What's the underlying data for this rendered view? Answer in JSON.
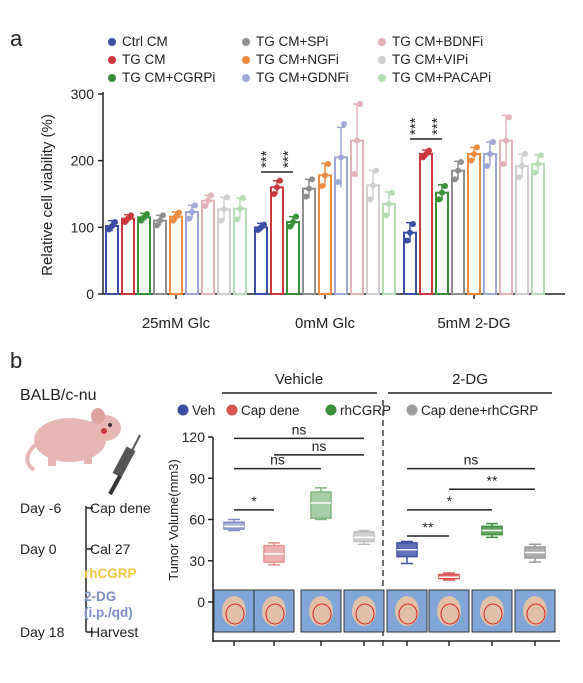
{
  "panel_a": {
    "label": "a",
    "chart_data": {
      "type": "bar",
      "ylabel": "Relative cell viability (%)",
      "ylim": [
        0,
        300
      ],
      "yticks": [
        0,
        100,
        200,
        300
      ],
      "categories": [
        "25mM Glc",
        "0mM Glc",
        "5mM 2-DG"
      ],
      "legend_position": "top",
      "series": [
        {
          "name": "Ctrl CM",
          "color": "#3b4fa6",
          "values": [
            102,
            100,
            92
          ],
          "errors": [
            8,
            6,
            15
          ],
          "points": [
            [
              97,
              102,
              108
            ],
            [
              96,
              100,
              104
            ],
            [
              80,
              92,
              105
            ]
          ]
        },
        {
          "name": "TG CM",
          "color": "#c8383d",
          "values": [
            113,
            160,
            210
          ],
          "errors": [
            6,
            10,
            6
          ],
          "points": [
            [
              108,
              113,
              118
            ],
            [
              150,
              160,
              170
            ],
            [
              205,
              210,
              215
            ]
          ]
        },
        {
          "name": "TG CM+CGRPi",
          "color": "#3a8f3a",
          "values": [
            115,
            108,
            152
          ],
          "errors": [
            6,
            8,
            12
          ],
          "points": [
            [
              110,
              115,
              120
            ],
            [
              101,
              108,
              116
            ],
            [
              142,
              152,
              162
            ]
          ]
        },
        {
          "name": "TG CM+SPi",
          "color": "#8e8e8e",
          "values": [
            110,
            158,
            185
          ],
          "errors": [
            8,
            14,
            14
          ],
          "points": [
            [
              103,
              110,
              118
            ],
            [
              146,
              158,
              172
            ],
            [
              172,
              185,
              198
            ]
          ]
        },
        {
          "name": "TG CM+NGFi",
          "color": "#ef8b40",
          "values": [
            116,
            178,
            210
          ],
          "errors": [
            7,
            18,
            10
          ],
          "points": [
            [
              110,
              116,
              122
            ],
            [
              162,
              178,
              195
            ],
            [
              200,
              210,
              220
            ]
          ]
        },
        {
          "name": "TG CM+GDNFi",
          "color": "#9ea7d8",
          "values": [
            123,
            205,
            210
          ],
          "errors": [
            10,
            45,
            18
          ],
          "points": [
            [
              113,
              123,
              133
            ],
            [
              168,
              205,
              255
            ],
            [
              192,
              210,
              228
            ]
          ]
        },
        {
          "name": "TG CM+BDNFi",
          "color": "#e4b3b8",
          "values": [
            140,
            230,
            230
          ],
          "errors": [
            8,
            55,
            38
          ],
          "points": [
            [
              132,
              140,
              148
            ],
            [
              180,
              230,
              285
            ],
            [
              195,
              230,
              265
            ]
          ]
        },
        {
          "name": "TG CM+VIPi",
          "color": "#cfcfcf",
          "values": [
            127,
            163,
            192
          ],
          "errors": [
            18,
            22,
            18
          ],
          "points": [
            [
              110,
              127,
              145
            ],
            [
              142,
              163,
              185
            ],
            [
              175,
              192,
              210
            ]
          ]
        },
        {
          "name": "TG CM+PACAPi",
          "color": "#b7dcb5",
          "values": [
            128,
            135,
            195
          ],
          "errors": [
            16,
            18,
            14
          ],
          "points": [
            [
              112,
              128,
              144
            ],
            [
              118,
              135,
              152
            ],
            [
              182,
              195,
              208
            ]
          ]
        }
      ],
      "annotations": [
        {
          "group": "0mM Glc",
          "text": "***",
          "from": "Ctrl CM",
          "to": "TG CM"
        },
        {
          "group": "0mM Glc",
          "text": "***",
          "from": "TG CM",
          "to": "TG CM+CGRPi"
        },
        {
          "group": "5mM 2-DG",
          "text": "***",
          "from": "Ctrl CM",
          "to": "TG CM"
        },
        {
          "group": "5mM 2-DG",
          "text": "***",
          "from": "TG CM",
          "to": "TG CM+CGRPi"
        }
      ]
    }
  },
  "panel_b": {
    "label": "b",
    "mouse_strain": "BALB/c-nu",
    "timeline": [
      {
        "day": "Day  -6",
        "event": "Cap dene",
        "color": "#222222"
      },
      {
        "day": "Day  0",
        "event": "Cal 27",
        "color": "#222222"
      },
      {
        "day": "",
        "event": "rhCGRP",
        "color": "#f2c744"
      },
      {
        "day": "",
        "event": "2-DG",
        "color": "#7b8fc8"
      },
      {
        "day": "",
        "event": "(i.p./qd)",
        "color": "#7b8fc8"
      },
      {
        "day": "Day  18",
        "event": "Harvest",
        "color": "#222222"
      }
    ],
    "chart_data": {
      "type": "box",
      "ylabel": "Tumor Volume(mm3)",
      "ylim": [
        0,
        120
      ],
      "yticks": [
        0,
        30,
        60,
        90,
        120
      ],
      "groups": [
        "Vehicle",
        "2-DG"
      ],
      "legend": [
        {
          "name": "Veh",
          "color": "#3b4fa6"
        },
        {
          "name": "Cap dene",
          "color": "#d9534f"
        },
        {
          "name": "rhCGRP",
          "color": "#3a8f3a"
        },
        {
          "name": "Cap dene+rhCGRP",
          "color": "#9a9a9a"
        }
      ],
      "series": [
        {
          "group": "Vehicle",
          "name": "Veh",
          "color": "#3b4fa6",
          "min": 52,
          "q1": 53,
          "median": 55,
          "q3": 58,
          "max": 60,
          "faded": true
        },
        {
          "group": "Vehicle",
          "name": "Cap dene",
          "color": "#d9534f",
          "min": 27,
          "q1": 29,
          "median": 35,
          "q3": 41,
          "max": 43,
          "faded": true
        },
        {
          "group": "Vehicle",
          "name": "rhCGRP",
          "color": "#3a8f3a",
          "min": 60,
          "q1": 61,
          "median": 72,
          "q3": 80,
          "max": 83,
          "faded": true
        },
        {
          "group": "Vehicle",
          "name": "Cap dene+rhCGRP",
          "color": "#9a9a9a",
          "min": 42,
          "q1": 44,
          "median": 47,
          "q3": 51,
          "max": 52,
          "faded": true
        },
        {
          "group": "2-DG",
          "name": "Veh",
          "color": "#3b4fa6",
          "min": 28,
          "q1": 33,
          "median": 38,
          "q3": 43,
          "max": 44,
          "faded": false
        },
        {
          "group": "2-DG",
          "name": "Cap dene",
          "color": "#d9534f",
          "min": 16,
          "q1": 17,
          "median": 18,
          "q3": 20,
          "max": 21,
          "faded": false
        },
        {
          "group": "2-DG",
          "name": "rhCGRP",
          "color": "#3a8f3a",
          "min": 47,
          "q1": 49,
          "median": 52,
          "q3": 55,
          "max": 57,
          "faded": false
        },
        {
          "group": "2-DG",
          "name": "Cap dene+rhCGRP",
          "color": "#9a9a9a",
          "min": 29,
          "q1": 32,
          "median": 36,
          "q3": 40,
          "max": 42,
          "faded": false
        }
      ],
      "comparisons": [
        {
          "from": 0,
          "to": 1,
          "text": "*",
          "y": 67
        },
        {
          "from": 0,
          "to": 2,
          "text": "ns",
          "y": 97
        },
        {
          "from": 1,
          "to": 3,
          "text": "ns",
          "y": 107
        },
        {
          "from": 0,
          "to": 3,
          "text": "ns",
          "y": 119
        },
        {
          "from": 4,
          "to": 5,
          "text": "**",
          "y": 48
        },
        {
          "from": 4,
          "to": 6,
          "text": "*",
          "y": 67
        },
        {
          "from": 5,
          "to": 7,
          "text": "**",
          "y": 82
        },
        {
          "from": 4,
          "to": 7,
          "text": "ns",
          "y": 97
        }
      ]
    }
  }
}
